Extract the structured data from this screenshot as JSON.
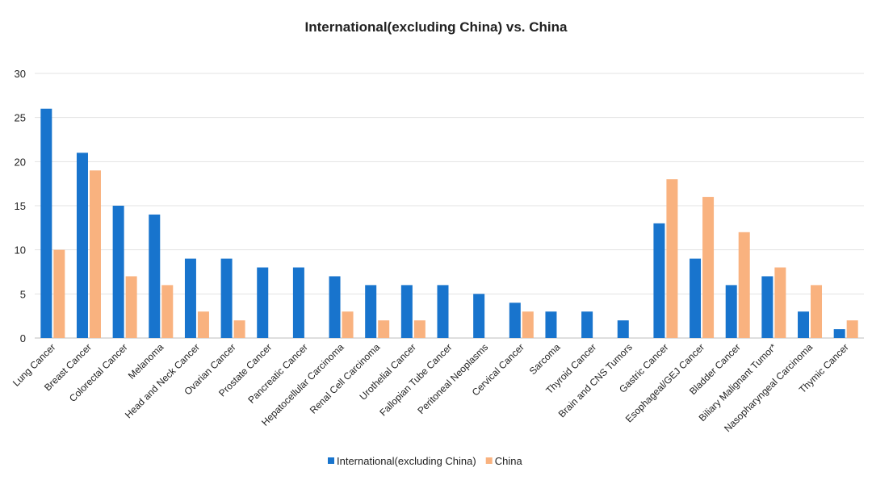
{
  "chart_data": {
    "type": "bar",
    "title": "International(excluding China) vs. China",
    "xlabel": "",
    "ylabel": "",
    "ylim": [
      0,
      30
    ],
    "yticks": [
      0,
      5,
      10,
      15,
      20,
      25,
      30
    ],
    "grid": true,
    "legend_position": "bottom",
    "categories": [
      "Lung Cancer",
      "Breast Cancer",
      "Colorectal Cancer",
      "Melanoma",
      "Head and Neck Cancer",
      "Ovarian Cancer",
      "Prostate Cancer",
      "Pancreatic Cancer",
      "Hepatocellular Carcinoma",
      "Renal Cell Carcinoma",
      "Urothelial Cancer",
      "Fallopian Tube Cancer",
      "Peritoneal Neoplasms",
      "Cervical Cancer",
      "Sarcoma",
      "Thyroid Cancer",
      "Brain and CNS Tumors",
      "Gastric Cancer",
      "Esophageal/GEJ Cancer",
      "Bladder Cancer",
      "Biliary Malignant Tumor*",
      "Nasopharyngeal Carcinoma",
      "Thymic Cancer"
    ],
    "series": [
      {
        "name": "International(excluding China)",
        "color": "#1874CD",
        "values": [
          26,
          21,
          15,
          14,
          9,
          9,
          8,
          8,
          7,
          6,
          6,
          6,
          5,
          4,
          3,
          3,
          2,
          13,
          9,
          6,
          7,
          3,
          1
        ]
      },
      {
        "name": "China",
        "color": "#F9B27F",
        "values": [
          10,
          19,
          7,
          6,
          3,
          2,
          0,
          0,
          3,
          2,
          2,
          0,
          0,
          3,
          0,
          0,
          0,
          18,
          16,
          12,
          8,
          6,
          2
        ]
      }
    ]
  }
}
